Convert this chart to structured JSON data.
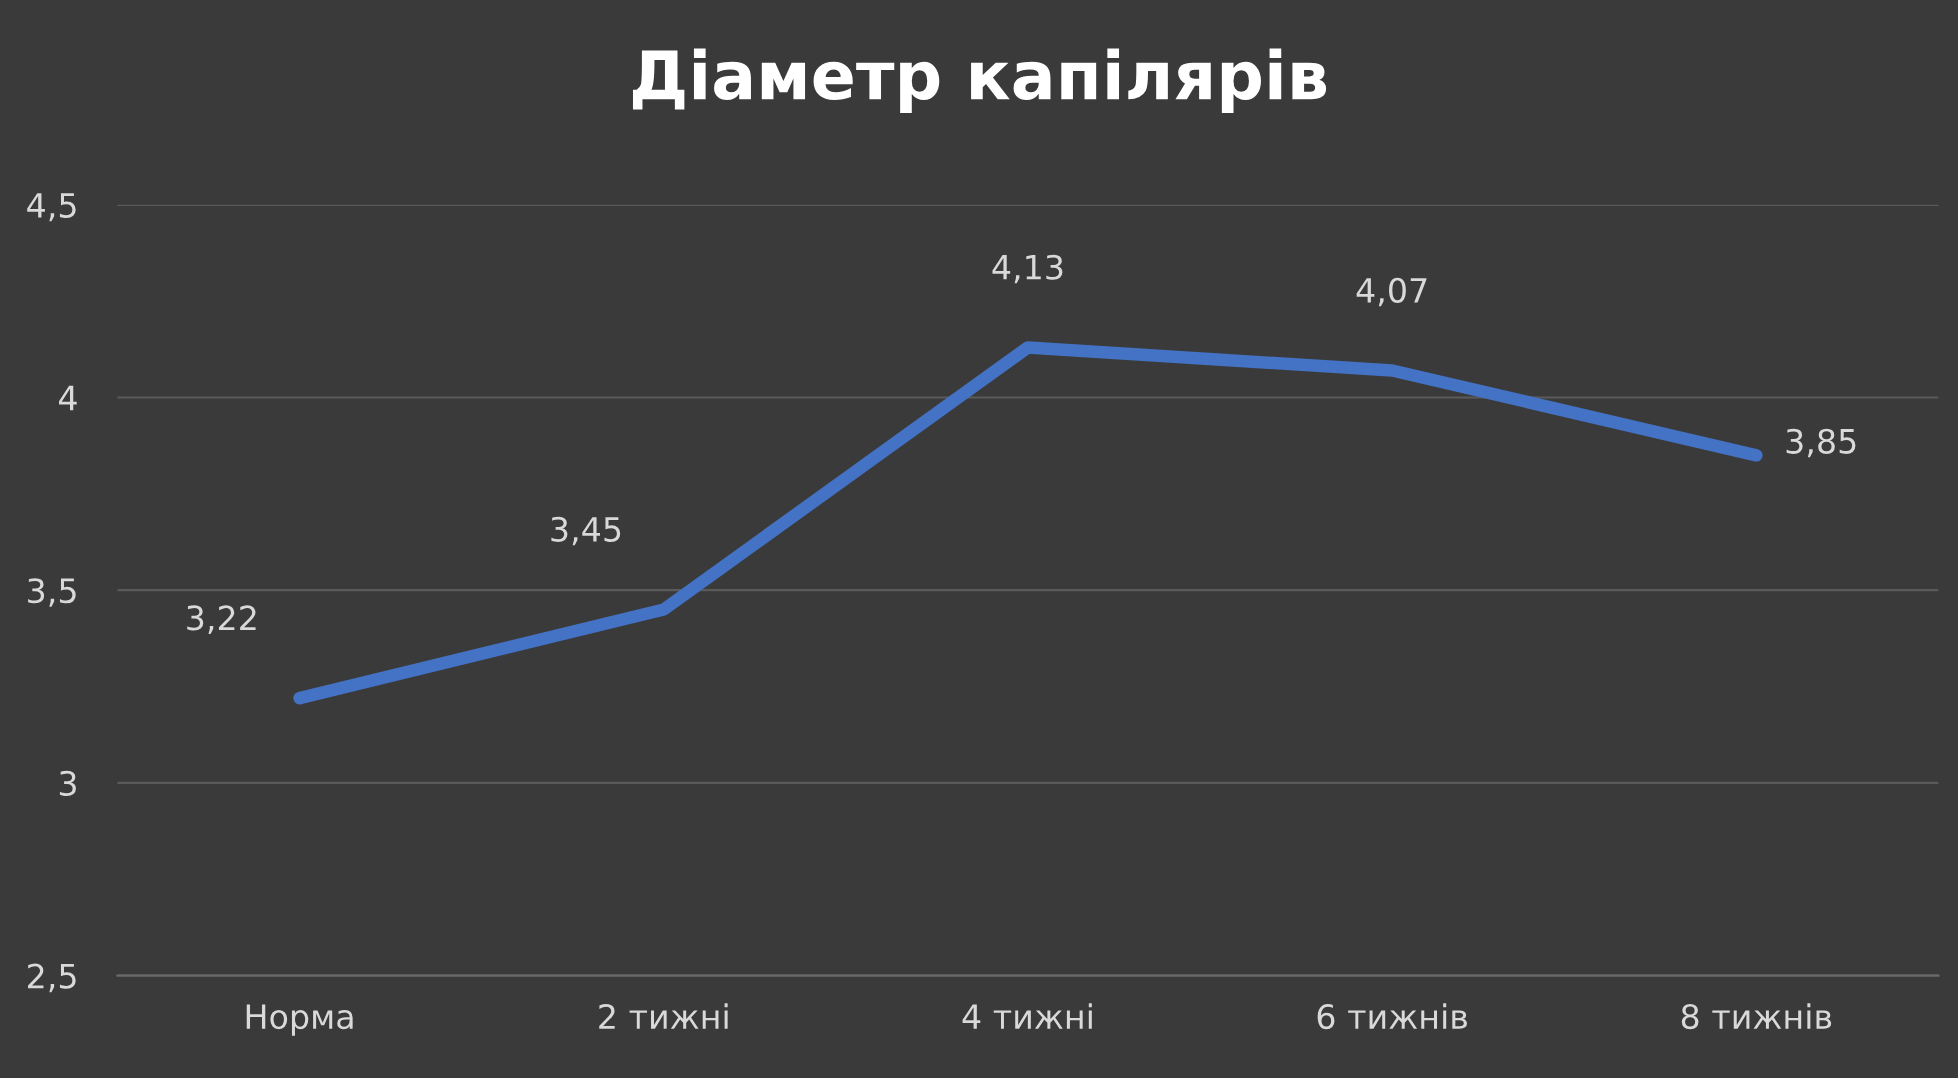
{
  "chart_data": {
    "type": "line",
    "title": "Діаметр капілярів",
    "categories": [
      "Норма",
      "2 тижні",
      "4 тижні",
      "6 тижнів",
      "8 тижнів"
    ],
    "series": [
      {
        "color": "#4472c4",
        "values": [
          3.22,
          3.45,
          4.13,
          4.07,
          3.85
        ],
        "value_labels": [
          "3,22",
          "3,45",
          "4,13",
          "4,07",
          "3,85"
        ]
      }
    ],
    "ylim": [
      2.5,
      4.5
    ],
    "yticks": [
      {
        "value": 2.5,
        "label": "2,5"
      },
      3,
      {
        "value": 3.5,
        "label": "3,5"
      },
      4,
      {
        "value": 4.5,
        "label": "4,5"
      }
    ],
    "grid": "y",
    "legend": false,
    "marker": "none",
    "line_style": "solid"
  }
}
